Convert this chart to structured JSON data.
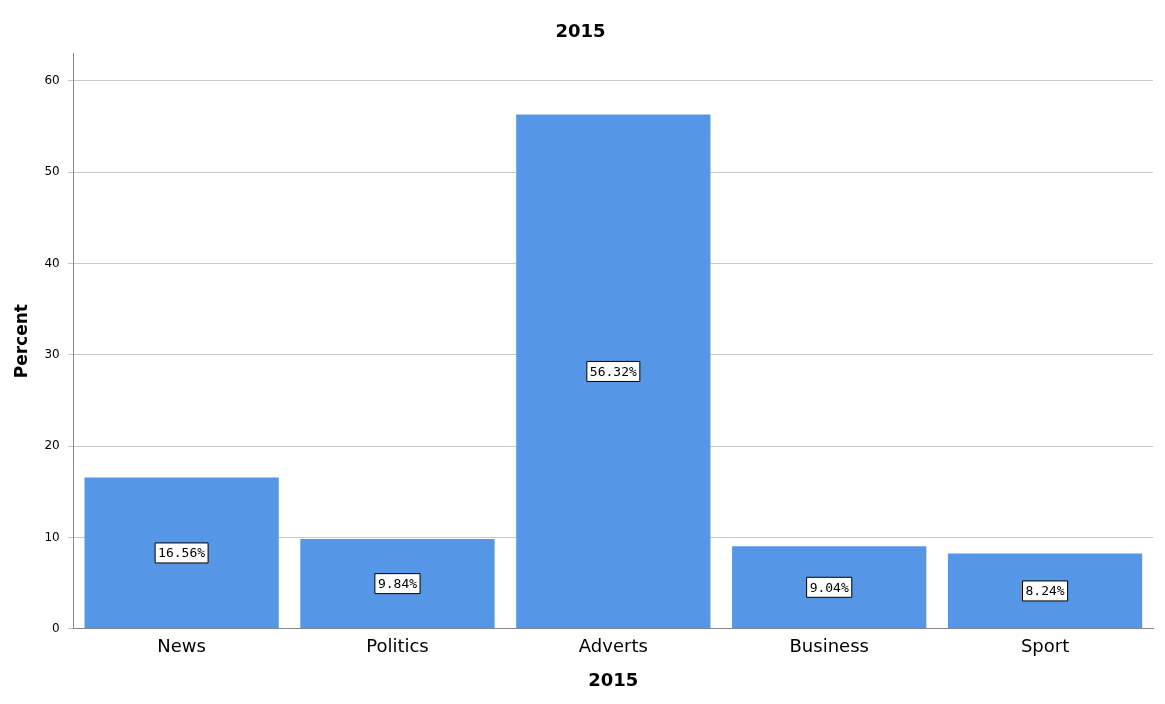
{
  "chart_data": {
    "type": "bar",
    "title": "2015",
    "xlabel": "2015",
    "ylabel": "Percent",
    "categories": [
      "News",
      "Politics",
      "Adverts",
      "Business",
      "Sport"
    ],
    "values": [
      16.56,
      9.84,
      56.32,
      9.04,
      8.24
    ],
    "value_labels": [
      "16.56%",
      "9.84%",
      "56.32%",
      "9.04%",
      "8.24%"
    ],
    "color": "#5596e6",
    "ylim": [
      0,
      63
    ],
    "yticks": [
      0,
      10,
      20,
      30,
      40,
      50,
      60
    ],
    "grid": "y",
    "legend": false
  }
}
